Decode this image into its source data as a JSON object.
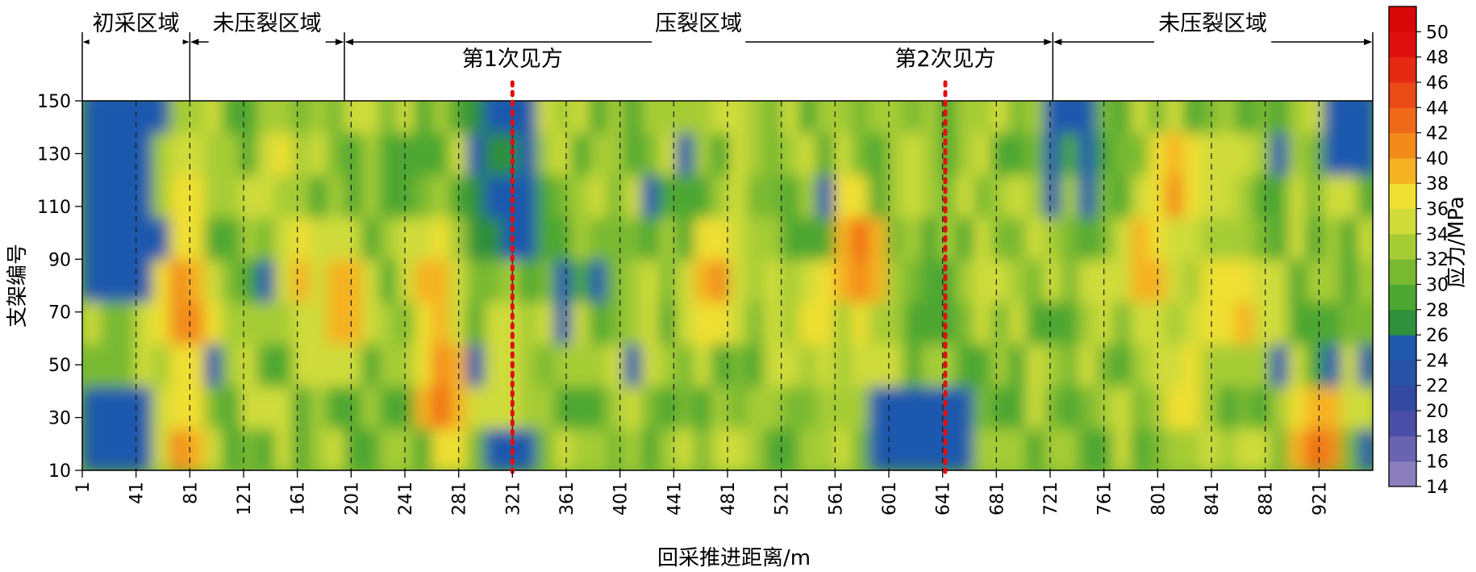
{
  "chart_data": {
    "type": "heatmap",
    "xlabel": "回采推进距离/m",
    "ylabel": "支架编号",
    "xlim": [
      1,
      961
    ],
    "ylim": [
      10,
      150
    ],
    "x_ticks": [
      1,
      41,
      81,
      121,
      161,
      201,
      241,
      281,
      321,
      361,
      401,
      441,
      481,
      521,
      561,
      601,
      641,
      681,
      721,
      761,
      801,
      841,
      881,
      921
    ],
    "y_ticks": [
      10,
      30,
      50,
      70,
      90,
      110,
      130,
      150
    ],
    "colorbar": {
      "label": "应力/MPa",
      "ticks": [
        14,
        16,
        18,
        20,
        22,
        24,
        26,
        28,
        30,
        32,
        34,
        36,
        38,
        40,
        42,
        44,
        46,
        48,
        50
      ],
      "range": [
        14,
        52
      ],
      "colors": [
        "#8b7fbd",
        "#6a63b0",
        "#4a4ea6",
        "#334aa0",
        "#2952a8",
        "#1f58ad",
        "#2f8f3a",
        "#4ea733",
        "#79b930",
        "#a6cc34",
        "#cfdc3a",
        "#efdf31",
        "#f5b222",
        "#f38a1c",
        "#ef6a18",
        "#ea4a15",
        "#e52a12",
        "#e01010",
        "#d80808"
      ]
    },
    "regions": [
      {
        "label": "初采区域",
        "x_start": 1,
        "x_end": 81
      },
      {
        "label": "未压裂区域",
        "x_start": 81,
        "x_end": 196
      },
      {
        "label": "压裂区域",
        "x_start": 196,
        "x_end": 723
      },
      {
        "label": "未压裂区域",
        "x_start": 723,
        "x_end": 961
      }
    ],
    "events": [
      {
        "label": "第1次见方",
        "x": 321
      },
      {
        "label": "第2次见方",
        "x": 643
      }
    ],
    "hotspots": [
      {
        "x": 77,
        "y": 72,
        "value": 44
      },
      {
        "x": 77,
        "y": 20,
        "value": 42
      },
      {
        "x": 79,
        "y": 118,
        "value": 40
      },
      {
        "x": 270,
        "y": 40,
        "value": 44
      },
      {
        "x": 262,
        "y": 78,
        "value": 42
      },
      {
        "x": 195,
        "y": 72,
        "value": 42
      },
      {
        "x": 162,
        "y": 85,
        "value": 40
      },
      {
        "x": 147,
        "y": 130,
        "value": 38
      },
      {
        "x": 470,
        "y": 82,
        "value": 42
      },
      {
        "x": 578,
        "y": 92,
        "value": 44
      },
      {
        "x": 548,
        "y": 70,
        "value": 40
      },
      {
        "x": 792,
        "y": 88,
        "value": 42
      },
      {
        "x": 812,
        "y": 120,
        "value": 42
      },
      {
        "x": 921,
        "y": 20,
        "value": 44
      },
      {
        "x": 866,
        "y": 72,
        "value": 40
      },
      {
        "x": 846,
        "y": 72,
        "value": 40
      },
      {
        "x": 822,
        "y": 40,
        "value": 40
      }
    ]
  }
}
